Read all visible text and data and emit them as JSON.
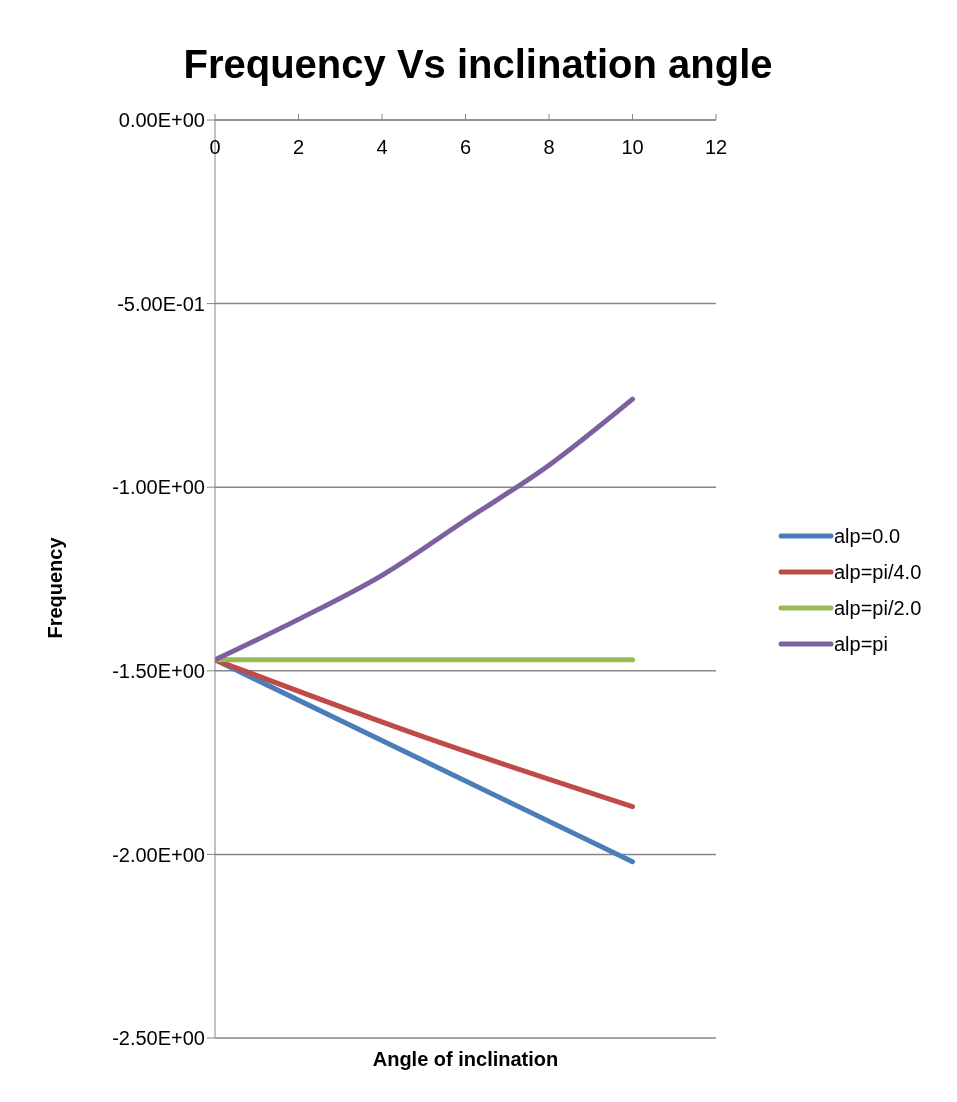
{
  "chart_data": {
    "type": "line",
    "title": "Frequency Vs inclination angle",
    "xlabel": "Angle of inclination",
    "ylabel": "Frequency",
    "xlim": [
      0,
      12
    ],
    "xticks": [
      0,
      2,
      4,
      6,
      8,
      10,
      12
    ],
    "ylim": [
      -2.5,
      0
    ],
    "yticks": [
      {
        "value": 0,
        "label": "0.00E+00"
      },
      {
        "value": -0.5,
        "label": "-5.00E-01"
      },
      {
        "value": -1,
        "label": "-1.00E+00"
      },
      {
        "value": -1.5,
        "label": "-1.50E+00"
      },
      {
        "value": -2,
        "label": "-2.00E+00"
      },
      {
        "value": -2.5,
        "label": "-2.50E+00"
      }
    ],
    "grid": "y",
    "legend": "right",
    "marker": "none",
    "line_style": "solid",
    "series": [
      {
        "name": "alp=0.0",
        "color": "#4a7ebb",
        "x": [
          0,
          10
        ],
        "values": [
          -1.47,
          -2.02
        ]
      },
      {
        "name": "alp=pi/4.0",
        "color": "#be4b48",
        "x": [
          0,
          5,
          10
        ],
        "values": [
          -1.47,
          -1.68,
          -1.87
        ]
      },
      {
        "name": "alp=pi/2.0",
        "color": "#98b954",
        "x": [
          0,
          10
        ],
        "values": [
          -1.47,
          -1.47
        ]
      },
      {
        "name": "alp=pi",
        "color": "#7d60a0",
        "x": [
          0,
          2,
          4,
          6,
          8,
          10
        ],
        "values": [
          -1.47,
          -1.36,
          -1.24,
          -1.09,
          -0.94,
          -0.76
        ]
      }
    ]
  }
}
